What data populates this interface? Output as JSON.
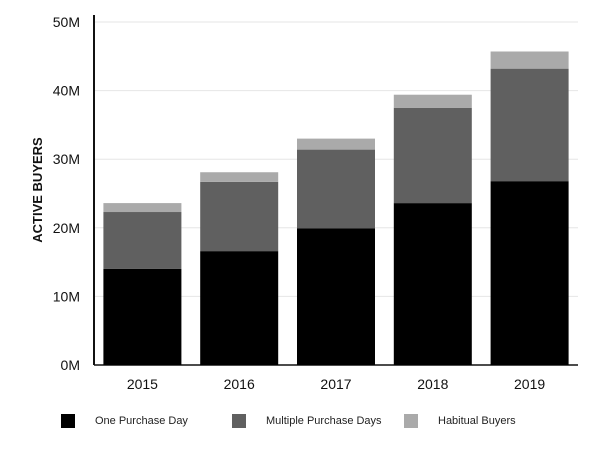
{
  "chart_data": {
    "type": "bar",
    "stacked": true,
    "categories": [
      "2015",
      "2016",
      "2017",
      "2018",
      "2019"
    ],
    "series": [
      {
        "name": "One Purchase Day",
        "color": "#000000",
        "values": [
          14.0,
          16.6,
          19.9,
          23.6,
          26.8
        ]
      },
      {
        "name": "Multiple Purchase Days",
        "color": "#606060",
        "values": [
          8.3,
          10.1,
          11.5,
          13.9,
          16.4
        ]
      },
      {
        "name": "Habitual Buyers",
        "color": "#aaaaaa",
        "values": [
          1.3,
          1.4,
          1.6,
          1.9,
          2.5
        ]
      }
    ],
    "ylabel": "ACTIVE BUYERS",
    "xlabel": "",
    "ylim": [
      0,
      50
    ],
    "y_unit": "M",
    "yticks": [
      "0M",
      "10M",
      "20M",
      "30M",
      "40M",
      "50M"
    ],
    "grid": "horizontal",
    "legend_position": "bottom"
  }
}
